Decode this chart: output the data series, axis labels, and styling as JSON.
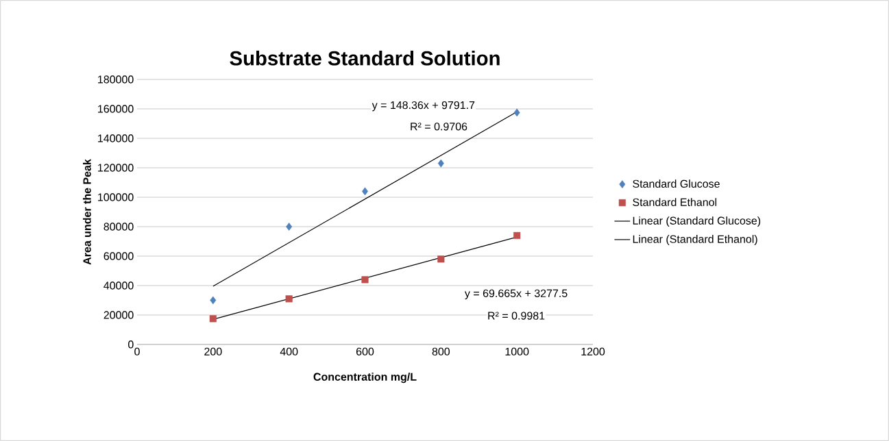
{
  "chart_data": {
    "type": "scatter",
    "title": "Substrate Standard Solution",
    "xlabel": "Concentration mg/L",
    "ylabel": "Area under the Peak",
    "xlim": [
      0,
      1200
    ],
    "xticks": [
      0,
      200,
      400,
      600,
      800,
      1000,
      1200
    ],
    "ylim": [
      0,
      180000
    ],
    "yticks": [
      0,
      20000,
      40000,
      60000,
      80000,
      100000,
      120000,
      140000,
      160000,
      180000
    ],
    "grid": "y",
    "legend": "right",
    "series": [
      {
        "name": "Standard Glucose",
        "marker": "diamond",
        "color": "#4f81bd",
        "x": [
          200,
          400,
          600,
          800,
          1000
        ],
        "values": [
          30000,
          80000,
          104000,
          123000,
          157500
        ]
      },
      {
        "name": "Standard Ethanol",
        "marker": "square",
        "color": "#c0504d",
        "x": [
          200,
          400,
          600,
          800,
          1000
        ],
        "values": [
          17500,
          31000,
          44000,
          58000,
          74000
        ]
      },
      {
        "name": "Linear (Standard Glucose)",
        "type": "line",
        "marker": "none",
        "color": "#000000",
        "x": [
          200,
          1000
        ],
        "values": [
          39500,
          158000
        ]
      },
      {
        "name": "Linear (Standard Ethanol)",
        "type": "line",
        "marker": "none",
        "color": "#000000",
        "x": [
          200,
          1000
        ],
        "values": [
          17000,
          73000
        ]
      }
    ],
    "annotations": [
      "y = 148.36x + 9791.7",
      "R² = 0.9706",
      "y = 69.665x + 3277.5",
      "R² = 0.9981"
    ]
  }
}
